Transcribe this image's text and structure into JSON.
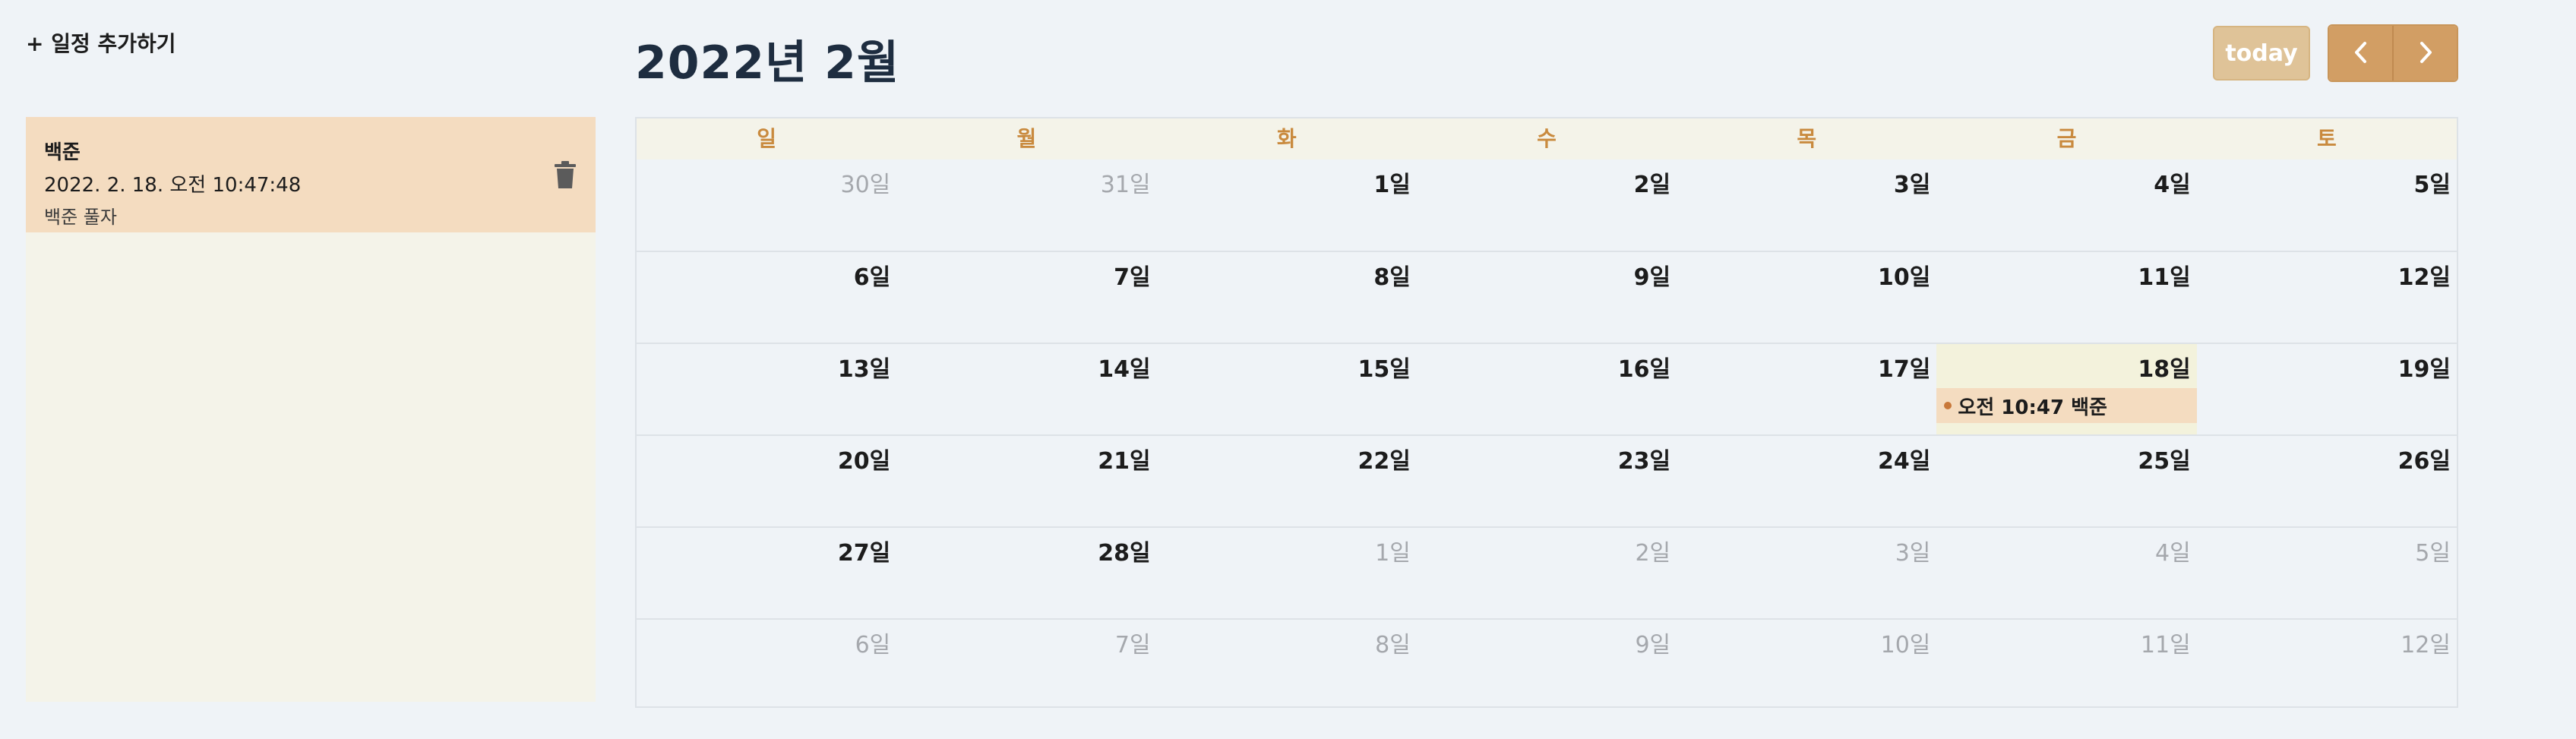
{
  "sidebar": {
    "add_label": "+ 일정 추가하기",
    "events": [
      {
        "title": "백준",
        "time": "2022. 2. 18. 오전 10:47:48",
        "desc": "백준 풀자"
      }
    ]
  },
  "header": {
    "month_title": "2022년 2월",
    "today_label": "today"
  },
  "calendar": {
    "weekdays": [
      "일",
      "월",
      "화",
      "수",
      "목",
      "금",
      "토"
    ],
    "weeks": [
      [
        {
          "d": "30일",
          "o": true
        },
        {
          "d": "31일",
          "o": true
        },
        {
          "d": "1일",
          "o": false
        },
        {
          "d": "2일",
          "o": false
        },
        {
          "d": "3일",
          "o": false
        },
        {
          "d": "4일",
          "o": false
        },
        {
          "d": "5일",
          "o": false
        }
      ],
      [
        {
          "d": "6일",
          "o": false
        },
        {
          "d": "7일",
          "o": false
        },
        {
          "d": "8일",
          "o": false
        },
        {
          "d": "9일",
          "o": false
        },
        {
          "d": "10일",
          "o": false
        },
        {
          "d": "11일",
          "o": false
        },
        {
          "d": "12일",
          "o": false
        }
      ],
      [
        {
          "d": "13일",
          "o": false
        },
        {
          "d": "14일",
          "o": false
        },
        {
          "d": "15일",
          "o": false
        },
        {
          "d": "16일",
          "o": false
        },
        {
          "d": "17일",
          "o": false
        },
        {
          "d": "18일",
          "o": false,
          "selected": true,
          "event": "오전 10:47 백준"
        },
        {
          "d": "19일",
          "o": false
        }
      ],
      [
        {
          "d": "20일",
          "o": false
        },
        {
          "d": "21일",
          "o": false
        },
        {
          "d": "22일",
          "o": false
        },
        {
          "d": "23일",
          "o": false
        },
        {
          "d": "24일",
          "o": false
        },
        {
          "d": "25일",
          "o": false
        },
        {
          "d": "26일",
          "o": false
        }
      ],
      [
        {
          "d": "27일",
          "o": false
        },
        {
          "d": "28일",
          "o": false
        },
        {
          "d": "1일",
          "o": true
        },
        {
          "d": "2일",
          "o": true
        },
        {
          "d": "3일",
          "o": true
        },
        {
          "d": "4일",
          "o": true
        },
        {
          "d": "5일",
          "o": true
        }
      ],
      [
        {
          "d": "6일",
          "o": true
        },
        {
          "d": "7일",
          "o": true
        },
        {
          "d": "8일",
          "o": true
        },
        {
          "d": "9일",
          "o": true
        },
        {
          "d": "10일",
          "o": true
        },
        {
          "d": "11일",
          "o": true
        },
        {
          "d": "12일",
          "o": true
        }
      ]
    ]
  },
  "icons": {
    "trash": "trash-icon",
    "prev": "chevron-left-icon",
    "next": "chevron-right-icon"
  },
  "colors": {
    "accent": "#d29e64",
    "event_bg": "#f4dcc0",
    "weekday_text": "#c98a3e"
  }
}
